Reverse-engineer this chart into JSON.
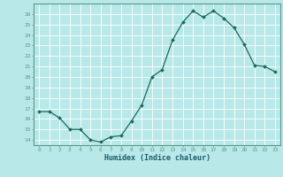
{
  "x": [
    0,
    1,
    2,
    3,
    4,
    5,
    6,
    7,
    8,
    9,
    10,
    11,
    12,
    13,
    14,
    15,
    16,
    17,
    18,
    19,
    20,
    21,
    22,
    23
  ],
  "y": [
    16.7,
    16.7,
    16.1,
    15.0,
    15.0,
    14.0,
    13.8,
    14.3,
    14.4,
    15.8,
    17.3,
    20.0,
    20.7,
    23.5,
    25.2,
    26.3,
    25.7,
    26.3,
    25.6,
    24.7,
    23.1,
    21.1,
    21.0,
    20.5
  ],
  "xlabel": "Humidex (Indice chaleur)",
  "ylim": [
    13.5,
    27
  ],
  "yticks": [
    14,
    15,
    16,
    17,
    18,
    19,
    20,
    21,
    22,
    23,
    24,
    25,
    26
  ],
  "xticks": [
    0,
    1,
    2,
    3,
    4,
    5,
    6,
    7,
    8,
    9,
    10,
    11,
    12,
    13,
    14,
    15,
    16,
    17,
    18,
    19,
    20,
    21,
    22,
    23
  ],
  "xlim": [
    -0.5,
    23.5
  ],
  "line_color": "#1a6b5a",
  "marker_color": "#1a6b5a",
  "bg_color": "#b8e8e8",
  "grid_color": "#ffffff",
  "axis_label_color": "#1a5c6e",
  "tick_label_color": "#1a5c6e",
  "spine_color": "#5a9a8a"
}
